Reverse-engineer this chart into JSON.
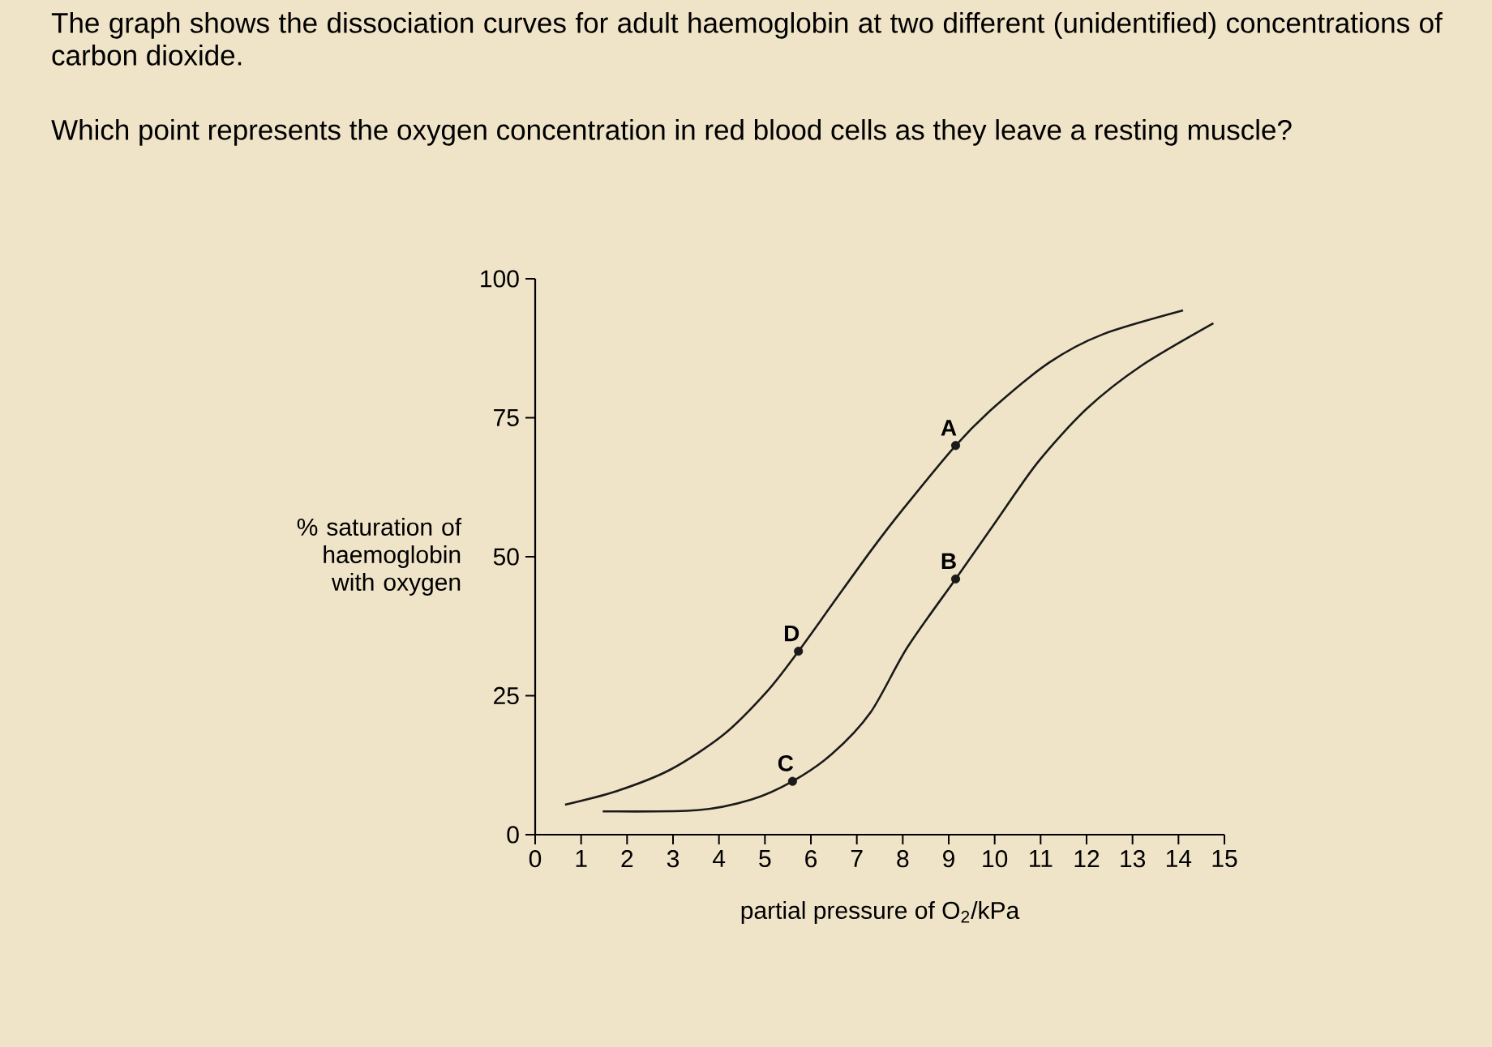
{
  "chart_data": {
    "type": "line",
    "title": "The graph shows the dissociation curves for adult haemoglobin at two different (unidentified) concentrations of carbon dioxide.",
    "subtitle": "Which point represents the oxygen concentration in red blood cells as they leave a resting muscle?",
    "xlabel": "partial pressure of O$_{2}$/kPa",
    "ylabel": "% saturation of haemoglobin with oxygen",
    "xlim": [
      0,
      15
    ],
    "ylim": [
      0,
      100
    ],
    "xticks": [
      0,
      1,
      2,
      3,
      4,
      5,
      6,
      7,
      8,
      9,
      10,
      11,
      12,
      13,
      14,
      15
    ],
    "yticks": [
      0,
      25,
      50,
      75,
      100
    ],
    "grid": false,
    "marker": "none",
    "line_style": "solid",
    "series": [
      {
        "color": "#1a1a1a",
        "x": [
          0.65,
          1.76,
          2.94,
          4.1,
          5.06,
          5.73,
          6.47,
          7.3,
          8.0,
          9.15,
          10.0,
          11.2,
          12.35,
          14.1
        ],
        "values": [
          5.4,
          7.8,
          11.7,
          18,
          25.9,
          33,
          41.5,
          51,
          58.5,
          70,
          77,
          85,
          90,
          94.3
        ]
      },
      {
        "color": "#1a1a1a",
        "x": [
          1.47,
          3.53,
          4.7,
          5.6,
          6.47,
          7.3,
          8.1,
          9.15,
          10.0,
          10.94,
          12.0,
          13.2,
          14.76
        ],
        "values": [
          4.2,
          4.4,
          6.3,
          9.6,
          14.6,
          22,
          33.7,
          46,
          56,
          67,
          76.6,
          84.4,
          92
        ]
      },
      {
        "type": "scatter",
        "color": "#1a1a1a",
        "marker": "circle",
        "x": [
          9.15,
          9.15,
          5.6,
          5.73
        ],
        "values": [
          70,
          46,
          9.6,
          33
        ]
      }
    ],
    "annotations": [
      {
        "text": "A",
        "x": 9.15,
        "y": 70
      },
      {
        "text": "B",
        "x": 9.15,
        "y": 46
      },
      {
        "text": "C",
        "x": 5.6,
        "y": 9.6
      },
      {
        "text": "D",
        "x": 5.73,
        "y": 33
      }
    ]
  }
}
